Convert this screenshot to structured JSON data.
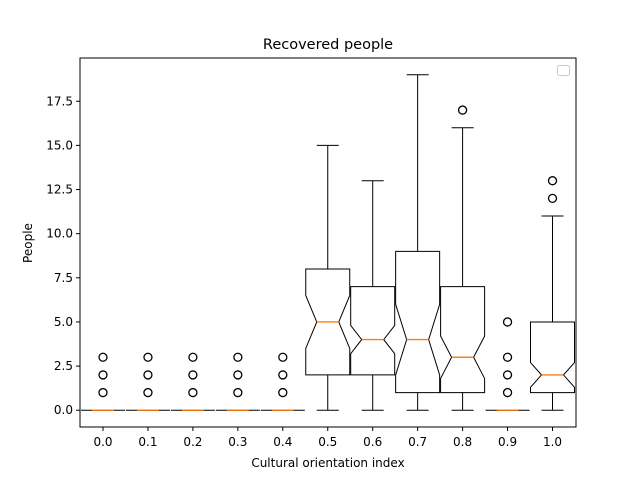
{
  "chart_data": {
    "type": "boxplot",
    "title": "Recovered people",
    "xlabel": "Cultural orientation index",
    "ylabel": "People",
    "ylim": [
      -0.95,
      19.95
    ],
    "yticks": [
      0.0,
      2.5,
      5.0,
      7.5,
      10.0,
      12.5,
      15.0,
      17.5
    ],
    "ytick_labels": [
      "0.0",
      "2.5",
      "5.0",
      "7.5",
      "10.0",
      "12.5",
      "15.0",
      "17.5"
    ],
    "grid": false,
    "notched": true,
    "legend": {
      "placement": "upper-right",
      "entries": []
    },
    "box_color": "#000000",
    "median_color": "#ff7f0e",
    "categories": [
      "0.0",
      "0.1",
      "0.2",
      "0.3",
      "0.4",
      "0.5",
      "0.6",
      "0.7",
      "0.8",
      "0.9",
      "1.0"
    ],
    "boxes": [
      {
        "q1": 0,
        "median": 0,
        "q3": 0,
        "whislo": 0,
        "whishi": 0,
        "notch": [
          0,
          0
        ],
        "fliers": [
          1,
          2,
          3
        ]
      },
      {
        "q1": 0,
        "median": 0,
        "q3": 0,
        "whislo": 0,
        "whishi": 0,
        "notch": [
          0,
          0
        ],
        "fliers": [
          1,
          2,
          3
        ]
      },
      {
        "q1": 0,
        "median": 0,
        "q3": 0,
        "whislo": 0,
        "whishi": 0,
        "notch": [
          0,
          0
        ],
        "fliers": [
          1,
          2,
          3
        ]
      },
      {
        "q1": 0,
        "median": 0,
        "q3": 0,
        "whislo": 0,
        "whishi": 0,
        "notch": [
          0,
          0
        ],
        "fliers": [
          1,
          2,
          3
        ]
      },
      {
        "q1": 0,
        "median": 0,
        "q3": 0,
        "whislo": 0,
        "whishi": 0,
        "notch": [
          0,
          0
        ],
        "fliers": [
          1,
          2,
          3
        ]
      },
      {
        "q1": 2,
        "median": 5,
        "q3": 8,
        "whislo": 0,
        "whishi": 15,
        "notch": [
          3.5,
          6.5
        ],
        "fliers": []
      },
      {
        "q1": 2,
        "median": 4,
        "q3": 7,
        "whislo": 0,
        "whishi": 13,
        "notch": [
          3.2,
          4.8
        ],
        "fliers": []
      },
      {
        "q1": 1,
        "median": 4,
        "q3": 9,
        "whislo": 0,
        "whishi": 19,
        "notch": [
          2.0,
          6.0
        ],
        "fliers": []
      },
      {
        "q1": 1,
        "median": 3,
        "q3": 7,
        "whislo": 0,
        "whishi": 16,
        "notch": [
          1.8,
          4.2
        ],
        "fliers": [
          17
        ]
      },
      {
        "q1": 0,
        "median": 0,
        "q3": 0,
        "whislo": 0,
        "whishi": 0,
        "notch": [
          0,
          0
        ],
        "fliers": [
          1,
          2,
          3,
          5
        ]
      },
      {
        "q1": 1,
        "median": 2,
        "q3": 5,
        "whislo": 0,
        "whishi": 11,
        "notch": [
          1.3,
          2.7
        ],
        "fliers": [
          12,
          13
        ]
      }
    ]
  }
}
